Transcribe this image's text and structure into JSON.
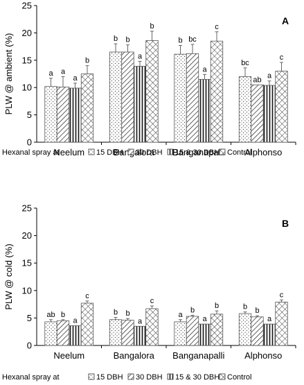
{
  "figure_legend_prefix": "Hexanal spray at",
  "series_names": [
    "15 DBH",
    "30 DBH",
    "15 & 30 DBH",
    "Control"
  ],
  "patterns": [
    "dots",
    "diagonal",
    "vertical",
    "crosshatch"
  ],
  "chart_data": [
    {
      "type": "bar",
      "panel_label": "A",
      "ylabel": "PLW @ ambient (%)",
      "xlabel": "",
      "ylim": [
        0,
        25
      ],
      "yticks": [
        0,
        5,
        10,
        15,
        20,
        25
      ],
      "categories": [
        "Neelum",
        "Bangalora",
        "Banganapalli",
        "Alphonso"
      ],
      "series": [
        {
          "name": "15 DBH",
          "values": [
            10.2,
            16.5,
            16.1,
            12.0
          ],
          "errors": [
            1.5,
            1.5,
            1.6,
            1.6
          ],
          "letters": [
            "a",
            "b",
            "b",
            "bc"
          ]
        },
        {
          "name": "30 DBH",
          "values": [
            10.1,
            16.5,
            16.2,
            10.5
          ],
          "errors": [
            1.9,
            1.3,
            1.7,
            0.0
          ],
          "letters": [
            "a",
            "b",
            "bc",
            "ab"
          ]
        },
        {
          "name": "15 & 30 DBH",
          "values": [
            9.9,
            13.9,
            11.5,
            10.4
          ],
          "errors": [
            0.9,
            0.9,
            0.9,
            0.8
          ],
          "letters": [
            "a",
            "a",
            "a",
            "a"
          ]
        },
        {
          "name": "Control",
          "values": [
            12.5,
            18.6,
            18.5,
            13.0
          ],
          "errors": [
            1.5,
            1.7,
            1.7,
            1.6
          ],
          "letters": [
            "b",
            "b",
            "c",
            "c"
          ]
        }
      ],
      "legend_placement": "bottom",
      "grid": false
    },
    {
      "type": "bar",
      "panel_label": "B",
      "ylabel": "PLW @ cold (%)",
      "xlabel": "",
      "ylim": [
        0,
        25
      ],
      "yticks": [
        0,
        5,
        10,
        15,
        20,
        25
      ],
      "categories": [
        "Neelum",
        "Bangalora",
        "Banganapalli",
        "Alphonso"
      ],
      "series": [
        {
          "name": "15 DBH",
          "values": [
            4.3,
            4.7,
            4.3,
            5.8
          ],
          "errors": [
            0.4,
            0.4,
            0.4,
            0.3
          ],
          "letters": [
            "ab",
            "b",
            "a",
            "b"
          ]
        },
        {
          "name": "30 DBH",
          "values": [
            4.5,
            4.6,
            5.3,
            5.2
          ],
          "errors": [
            0.2,
            0.3,
            0.2,
            0.2
          ],
          "letters": [
            "b",
            "b",
            "b",
            "b"
          ]
        },
        {
          "name": "15 & 30 DBH",
          "values": [
            3.6,
            3.5,
            3.9,
            3.9
          ],
          "errors": [
            0.0,
            0.0,
            0.0,
            0.0
          ],
          "letters": [
            "a",
            "a",
            "a",
            "a"
          ]
        },
        {
          "name": "Control",
          "values": [
            7.7,
            6.7,
            5.7,
            7.9
          ],
          "errors": [
            0.4,
            0.5,
            0.6,
            0.4
          ],
          "letters": [
            "c",
            "c",
            "b",
            "c"
          ]
        }
      ],
      "legend_placement": "bottom",
      "grid": false
    }
  ]
}
